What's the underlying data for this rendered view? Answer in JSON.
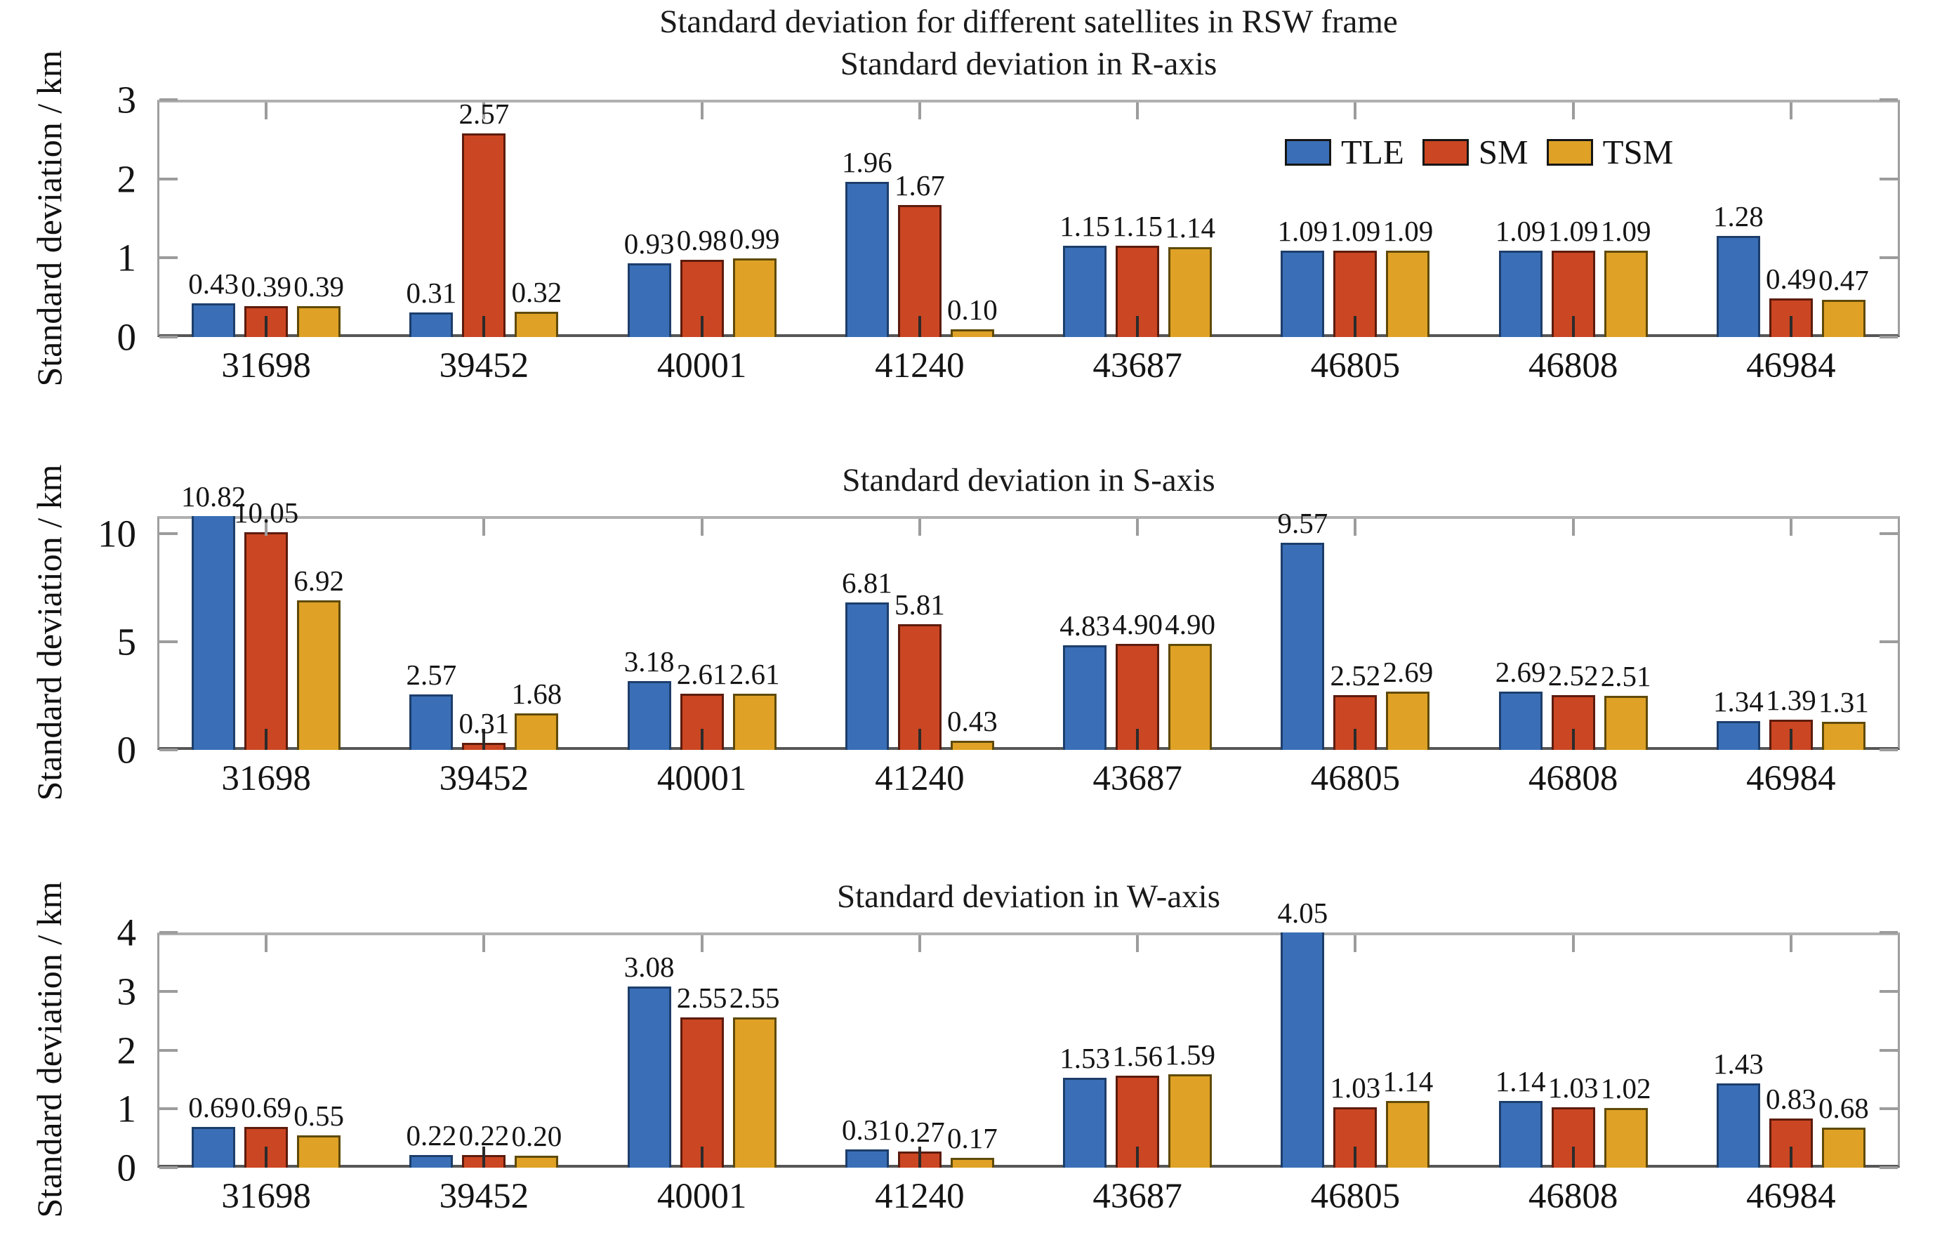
{
  "figure": {
    "title": "Standard deviation for different satellites in RSW frame"
  },
  "legend": {
    "position": "top-right-of-first-panel",
    "entries": [
      {
        "label": "TLE",
        "color": "#3a6fb7",
        "edge": "#1d3e6b"
      },
      {
        "label": "SM",
        "color": "#cb4622",
        "edge": "#5c1c0d"
      },
      {
        "label": "TSM",
        "color": "#dfa226",
        "edge": "#5f4a0a"
      }
    ]
  },
  "chart_data": [
    {
      "type": "bar",
      "title": "Standard deviation in R-axis",
      "ylabel": "Standard deviation / km",
      "categories": [
        "31698",
        "39452",
        "40001",
        "41240",
        "43687",
        "46805",
        "46808",
        "46984"
      ],
      "series": [
        {
          "name": "TLE",
          "values": [
            0.43,
            0.31,
            0.93,
            1.96,
            1.15,
            1.09,
            1.09,
            1.28
          ]
        },
        {
          "name": "SM",
          "values": [
            0.39,
            2.57,
            0.98,
            1.67,
            1.15,
            1.09,
            1.09,
            0.49
          ]
        },
        {
          "name": "TSM",
          "values": [
            0.39,
            0.32,
            0.99,
            0.1,
            1.14,
            1.09,
            1.09,
            0.47
          ]
        }
      ],
      "ylim": [
        0,
        3
      ],
      "yticks": [
        0,
        1,
        2,
        3
      ],
      "grid": false,
      "value_label_decimals": 2
    },
    {
      "type": "bar",
      "title": "Standard deviation in S-axis",
      "ylabel": "Standard deviation / km",
      "categories": [
        "31698",
        "39452",
        "40001",
        "41240",
        "43687",
        "46805",
        "46808",
        "46984"
      ],
      "series": [
        {
          "name": "TLE",
          "values": [
            10.82,
            2.57,
            3.18,
            6.81,
            4.83,
            9.57,
            2.69,
            1.34
          ]
        },
        {
          "name": "SM",
          "values": [
            10.05,
            0.31,
            2.61,
            5.81,
            4.9,
            2.52,
            2.52,
            1.39
          ]
        },
        {
          "name": "TSM",
          "values": [
            6.92,
            1.68,
            2.61,
            0.43,
            4.9,
            2.69,
            2.51,
            1.31
          ]
        }
      ],
      "ylim": [
        0,
        10.8
      ],
      "yticks": [
        0,
        5,
        10
      ],
      "grid": false,
      "value_label_decimals": 2
    },
    {
      "type": "bar",
      "title": "Standard deviation in W-axis",
      "ylabel": "Standard deviation / km",
      "categories": [
        "31698",
        "39452",
        "40001",
        "41240",
        "43687",
        "46805",
        "46808",
        "46984"
      ],
      "series": [
        {
          "name": "TLE",
          "values": [
            0.69,
            0.22,
            3.08,
            0.31,
            1.53,
            4.05,
            1.14,
            1.43
          ]
        },
        {
          "name": "SM",
          "values": [
            0.69,
            0.22,
            2.55,
            0.27,
            1.56,
            1.03,
            1.03,
            0.83
          ]
        },
        {
          "name": "TSM",
          "values": [
            0.55,
            0.2,
            2.55,
            0.17,
            1.59,
            1.14,
            1.02,
            0.68
          ]
        }
      ],
      "ylim": [
        0,
        4
      ],
      "yticks": [
        0,
        1,
        2,
        3,
        4
      ],
      "grid": false,
      "value_label_decimals": 2
    }
  ]
}
